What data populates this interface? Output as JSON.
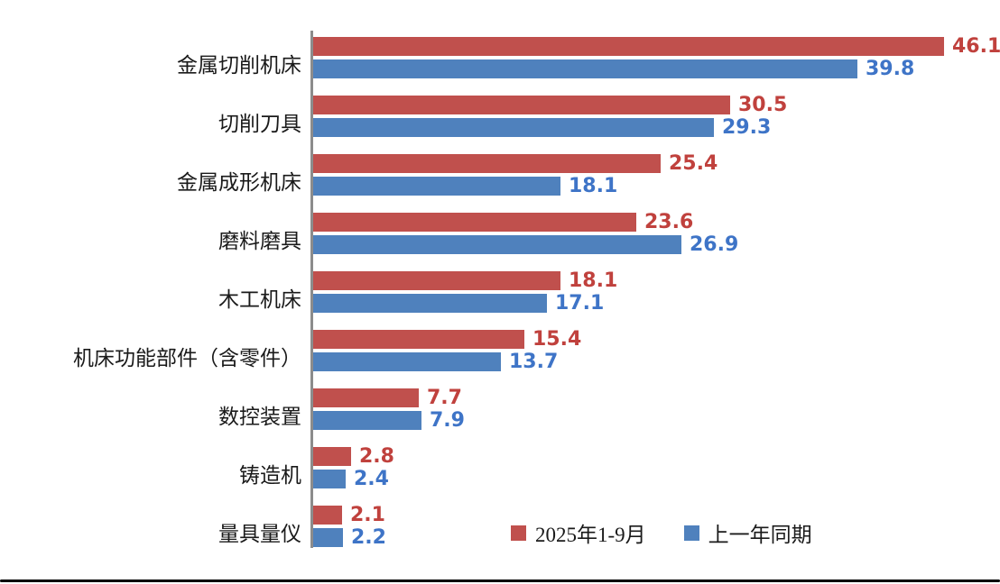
{
  "chart_data": {
    "type": "bar",
    "orientation": "horizontal",
    "title": "",
    "xlabel": "",
    "ylabel": "",
    "grid": false,
    "xlim": [
      0,
      46.1
    ],
    "legend_position": "bottom-inside",
    "axis_color": "#8c8c8c",
    "categories": [
      "金属切削机床",
      "切削刀具",
      "金属成形机床",
      "磨料磨具",
      "木工机床",
      "机床功能部件（含零件）",
      "数控装置",
      "铸造机",
      "量具量仪"
    ],
    "series": [
      {
        "name": "2025年1-9月",
        "color": "#c0504d",
        "label_color": "#c0413d",
        "values": [
          46.1,
          30.5,
          25.4,
          23.6,
          18.1,
          15.4,
          7.7,
          2.8,
          2.1
        ]
      },
      {
        "name": "上一年同期",
        "color": "#4f81bd",
        "label_color": "#3e74c7",
        "values": [
          39.8,
          29.3,
          18.1,
          26.9,
          17.1,
          13.7,
          7.9,
          2.4,
          2.2
        ]
      }
    ]
  }
}
